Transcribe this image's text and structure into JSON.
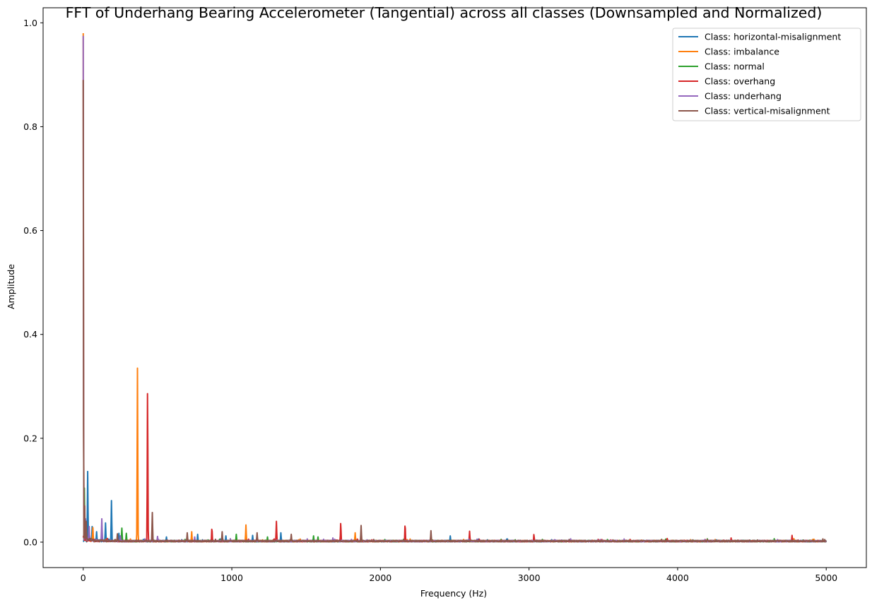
{
  "chart_data": {
    "type": "line",
    "title": "FFT of Underhang Bearing Accelerometer (Tangential) across all classes (Downsampled and Normalized)",
    "xlabel": "Frequency (Hz)",
    "ylabel": "Amplitude",
    "xlim": [
      -270,
      5270
    ],
    "ylim": [
      -0.049,
      1.029
    ],
    "xticks": [
      0,
      1000,
      2000,
      3000,
      4000,
      5000
    ],
    "yticks": [
      0.0,
      0.2,
      0.4,
      0.6,
      0.8,
      1.0
    ],
    "xtick_labels": [
      "0",
      "1000",
      "2000",
      "3000",
      "4000",
      "5000"
    ],
    "ytick_labels": [
      "0.0",
      "0.2",
      "0.4",
      "0.6",
      "0.8",
      "1.0"
    ],
    "legend_position": "upper right",
    "x_range": [
      0,
      5000
    ],
    "series": [
      {
        "name": "Class: horizontal-misalignment",
        "color": "#1f77b4",
        "baseline": 0.002,
        "peaks": [
          [
            30,
            0.136
          ],
          [
            60,
            0.03
          ],
          [
            90,
            0.02
          ],
          [
            150,
            0.037
          ],
          [
            190,
            0.08
          ],
          [
            240,
            0.017
          ],
          [
            560,
            0.01
          ],
          [
            770,
            0.015
          ],
          [
            960,
            0.012
          ],
          [
            1140,
            0.013
          ],
          [
            1330,
            0.018
          ],
          [
            2470,
            0.012
          ],
          [
            2660,
            0.006
          ],
          [
            2850,
            0.006
          ]
        ]
      },
      {
        "name": "Class: imbalance",
        "color": "#ff7f0e",
        "baseline": 0.002,
        "peaks": [
          [
            0,
            0.98
          ],
          [
            65,
            0.028
          ],
          [
            365,
            0.335
          ],
          [
            730,
            0.02
          ],
          [
            1095,
            0.033
          ],
          [
            1460,
            0.006
          ],
          [
            1830,
            0.018
          ],
          [
            2200,
            0.006
          ]
        ]
      },
      {
        "name": "Class: normal",
        "color": "#2ca02c",
        "baseline": 0.002,
        "peaks": [
          [
            8,
            0.11
          ],
          [
            260,
            0.027
          ],
          [
            290,
            0.017
          ],
          [
            1030,
            0.015
          ],
          [
            1240,
            0.01
          ],
          [
            1550,
            0.012
          ],
          [
            1580,
            0.01
          ],
          [
            2030,
            0.005
          ],
          [
            3920,
            0.006
          ]
        ]
      },
      {
        "name": "Class: overhang",
        "color": "#d62728",
        "baseline": 0.002,
        "peaks": [
          [
            433,
            0.295
          ],
          [
            866,
            0.028
          ],
          [
            1300,
            0.04
          ],
          [
            1733,
            0.037
          ],
          [
            2166,
            0.035
          ],
          [
            2600,
            0.021
          ],
          [
            3033,
            0.015
          ],
          [
            3466,
            0.006
          ],
          [
            3930,
            0.007
          ],
          [
            4360,
            0.008
          ],
          [
            4770,
            0.013
          ]
        ]
      },
      {
        "name": "Class: underhang",
        "color": "#9467bd",
        "baseline": 0.002,
        "peaks": [
          [
            0,
            0.975
          ],
          [
            15,
            0.045
          ],
          [
            40,
            0.03
          ],
          [
            125,
            0.045
          ],
          [
            250,
            0.012
          ],
          [
            500,
            0.011
          ],
          [
            750,
            0.01
          ],
          [
            1680,
            0.008
          ],
          [
            3220,
            0.004
          ],
          [
            3480,
            0.005
          ]
        ]
      },
      {
        "name": "Class: vertical-misalignment",
        "color": "#8c564b",
        "baseline": 0.002,
        "peaks": [
          [
            0,
            0.89
          ],
          [
            10,
            0.07
          ],
          [
            20,
            0.04
          ],
          [
            230,
            0.016
          ],
          [
            465,
            0.057
          ],
          [
            700,
            0.018
          ],
          [
            935,
            0.02
          ],
          [
            1170,
            0.018
          ],
          [
            1400,
            0.015
          ],
          [
            1870,
            0.032
          ],
          [
            2340,
            0.022
          ],
          [
            3270,
            0.005
          ],
          [
            4200,
            0.005
          ]
        ]
      }
    ]
  }
}
